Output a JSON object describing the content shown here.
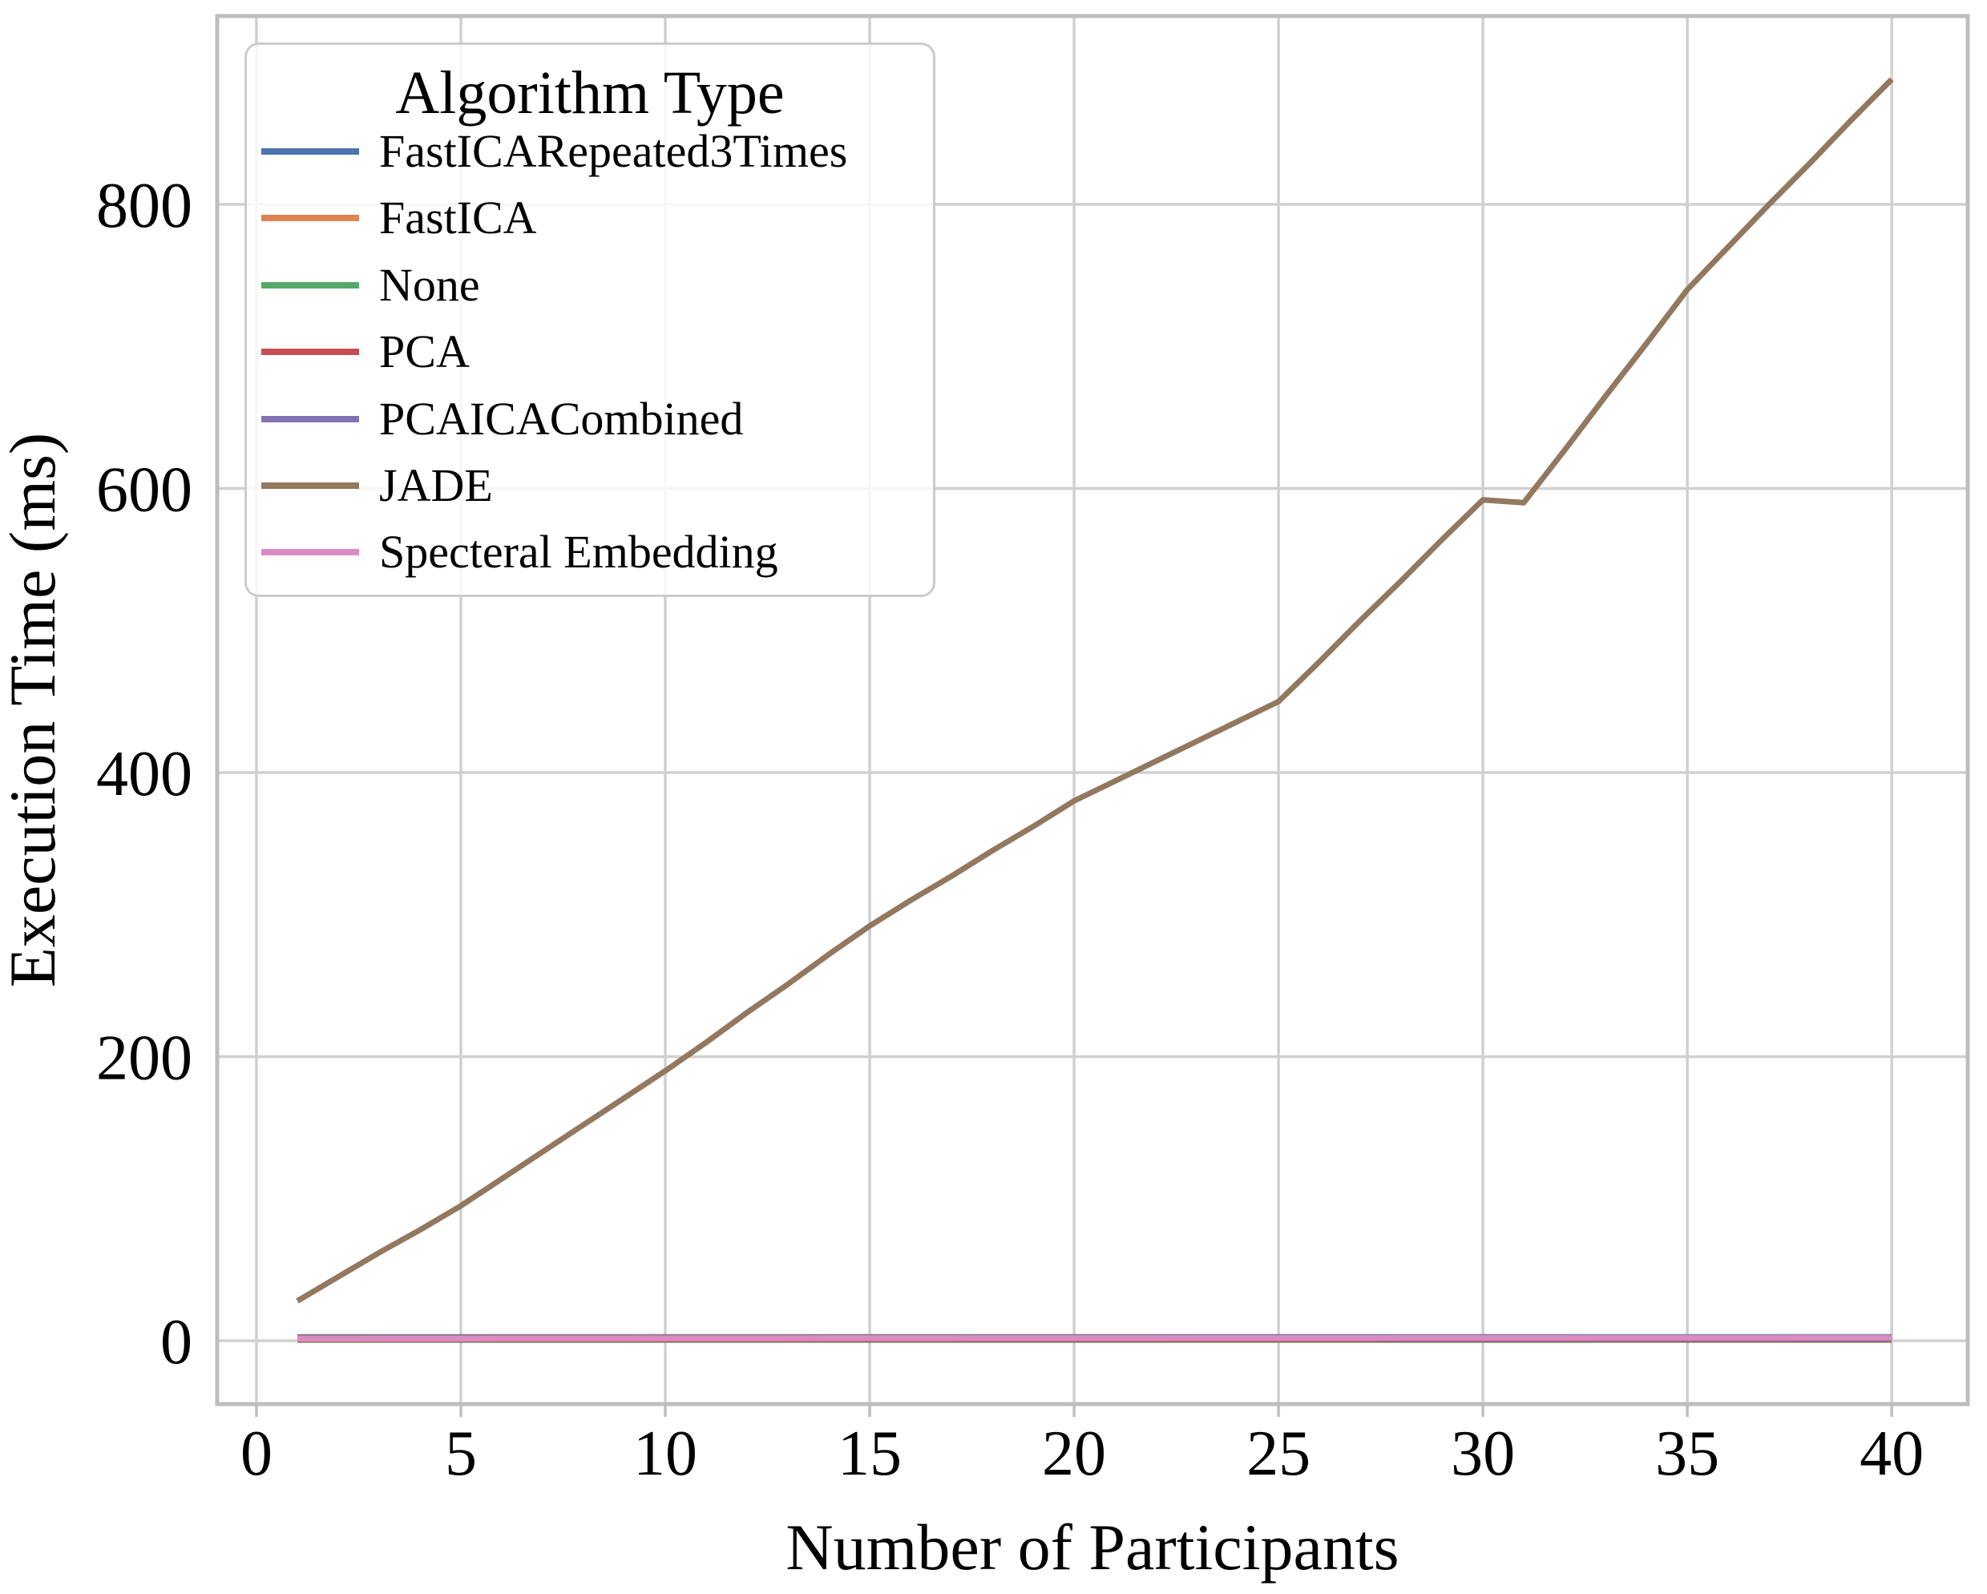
{
  "chart_data": {
    "type": "line",
    "title": "",
    "xlabel": "Number of Participants",
    "ylabel": "Execution Time (ms)",
    "legend_title": "Algorithm Type",
    "legend_position": "upper left",
    "grid": true,
    "xlim": [
      -0.96,
      41.86
    ],
    "ylim": [
      -44.6,
      932.6
    ],
    "xticks": [
      0,
      5,
      10,
      15,
      20,
      25,
      30,
      35,
      40
    ],
    "yticks": [
      0,
      200,
      400,
      600,
      800
    ],
    "x": [
      1,
      2,
      3,
      4,
      5,
      6,
      7,
      8,
      9,
      10,
      11,
      12,
      13,
      14,
      15,
      16,
      17,
      18,
      19,
      20,
      21,
      22,
      23,
      24,
      25,
      26,
      27,
      28,
      29,
      30,
      31,
      32,
      33,
      34,
      35,
      36,
      37,
      38,
      39,
      40
    ],
    "series": [
      {
        "name": "FastICARepeated3Times",
        "color": "#4C72B0",
        "values": [
          2.6,
          2.6,
          2.6,
          2.6,
          2.6,
          2.6,
          2.6,
          2.6,
          2.6,
          2.6,
          2.6,
          2.6,
          2.6,
          2.6,
          2.6,
          2.6,
          2.6,
          2.6,
          2.6,
          2.6,
          2.6,
          2.6,
          2.6,
          2.6,
          2.6,
          2.6,
          2.6,
          2.6,
          2.6,
          2.6,
          2.6,
          2.6,
          2.6,
          2.6,
          2.6,
          2.6,
          2.6,
          2.6,
          2.6,
          2.6
        ]
      },
      {
        "name": "FastICA",
        "color": "#DD8452",
        "values": [
          2.1,
          2.1,
          2.1,
          2.1,
          2.1,
          2.1,
          2.1,
          2.1,
          2.1,
          2.1,
          2.1,
          2.1,
          2.1,
          2.1,
          2.1,
          2.1,
          2.1,
          2.1,
          2.1,
          2.1,
          2.1,
          2.1,
          2.1,
          2.1,
          2.1,
          2.1,
          2.1,
          2.1,
          2.1,
          2.1,
          2.1,
          2.1,
          2.1,
          2.1,
          2.1,
          2.1,
          2.1,
          2.1,
          2.1,
          2.1
        ]
      },
      {
        "name": "None",
        "color": "#55A868",
        "values": [
          0.5,
          0.5,
          0.5,
          0.5,
          0.5,
          0.5,
          0.5,
          0.5,
          0.5,
          0.5,
          0.5,
          0.5,
          0.5,
          0.5,
          0.5,
          0.5,
          0.5,
          0.5,
          0.5,
          0.5,
          0.5,
          0.5,
          0.5,
          0.5,
          0.5,
          0.5,
          0.5,
          0.5,
          0.5,
          0.5,
          0.5,
          0.5,
          0.5,
          0.5,
          0.5,
          0.5,
          0.5,
          0.5,
          0.5,
          0.5
        ]
      },
      {
        "name": "PCA",
        "color": "#C44E52",
        "values": [
          0.9,
          0.9,
          0.9,
          0.9,
          0.9,
          0.9,
          0.9,
          0.9,
          0.9,
          0.9,
          0.9,
          0.9,
          0.9,
          0.9,
          0.9,
          0.9,
          0.9,
          0.9,
          0.9,
          0.9,
          0.9,
          0.9,
          0.9,
          0.9,
          0.9,
          0.9,
          0.9,
          0.9,
          0.9,
          0.9,
          0.9,
          0.9,
          0.9,
          0.9,
          0.9,
          0.9,
          0.9,
          0.9,
          0.9,
          0.9
        ]
      },
      {
        "name": "PCAICACombined",
        "color": "#8172B3",
        "values": [
          1.6,
          1.6,
          1.6,
          1.6,
          1.6,
          1.6,
          1.6,
          1.6,
          1.6,
          1.6,
          1.6,
          1.6,
          1.6,
          1.6,
          1.6,
          1.6,
          1.6,
          1.6,
          1.6,
          1.6,
          1.6,
          1.6,
          1.6,
          1.6,
          1.6,
          1.6,
          1.6,
          1.6,
          1.6,
          1.6,
          1.6,
          1.6,
          1.6,
          1.6,
          1.6,
          1.6,
          1.6,
          1.6,
          1.6,
          1.6
        ]
      },
      {
        "name": "JADE",
        "color": "#937860",
        "values": [
          28,
          45,
          62,
          78,
          95,
          114,
          133,
          152,
          171,
          190,
          210,
          231,
          251,
          272,
          292,
          310,
          327,
          345,
          362,
          380,
          394,
          408,
          422,
          436,
          450,
          478,
          507,
          535,
          564,
          592,
          590,
          627,
          665,
          702,
          740,
          770,
          800,
          829,
          859,
          888
        ]
      },
      {
        "name": "Specteral Embedding",
        "color": "#DA8BC3",
        "values": [
          1.3,
          1.3,
          1.4,
          1.4,
          1.4,
          1.5,
          1.5,
          1.5,
          1.5,
          1.6,
          1.6,
          1.6,
          1.6,
          1.7,
          1.7,
          1.7,
          1.7,
          1.8,
          1.8,
          1.8,
          1.8,
          1.8,
          1.9,
          1.9,
          1.9,
          1.9,
          1.9,
          2.0,
          2.0,
          2.0,
          2.0,
          2.0,
          2.1,
          2.1,
          2.1,
          2.1,
          2.1,
          2.2,
          2.2,
          2.2
        ]
      }
    ],
    "style": {
      "grid_color": "#d0d0d0",
      "spine_color": "#bebebe",
      "text_color": "#000000",
      "legend_border_color": "#cccccc"
    }
  }
}
